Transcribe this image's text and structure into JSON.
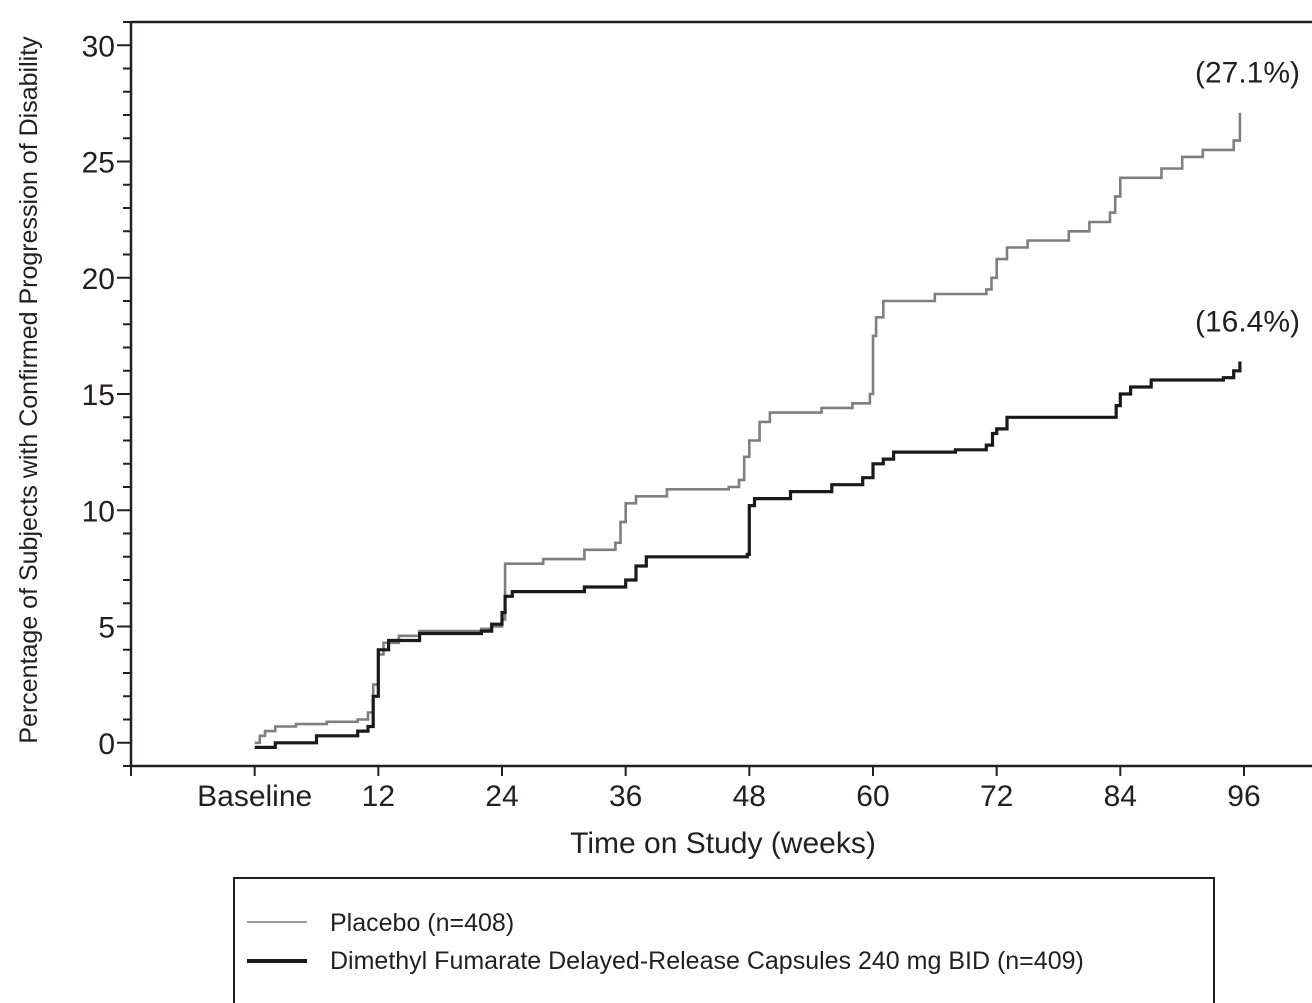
{
  "chart_data": {
    "type": "line",
    "step": true,
    "title": "",
    "ylabel": "Percentage of Subjects with Confirmed Progression of Disability",
    "xlabel": "Time on Study (weeks)",
    "x_ticks": [
      {
        "value": 0,
        "label": "Baseline"
      },
      {
        "value": 12,
        "label": "12"
      },
      {
        "value": 24,
        "label": "24"
      },
      {
        "value": 36,
        "label": "36"
      },
      {
        "value": 48,
        "label": "48"
      },
      {
        "value": 60,
        "label": "60"
      },
      {
        "value": 72,
        "label": "72"
      },
      {
        "value": 84,
        "label": "84"
      },
      {
        "value": 96,
        "label": "96"
      }
    ],
    "y_ticks": [
      0,
      5,
      10,
      15,
      20,
      25,
      30
    ],
    "xlim": [
      -12,
      102.6
    ],
    "ylim": [
      -1,
      31
    ],
    "grid": false,
    "legend_position": "bottom",
    "series": [
      {
        "name": "Placebo (n=408)",
        "color": "#7f7f7f",
        "end_label": "(27.1%)",
        "points": [
          [
            0,
            0
          ],
          [
            0.5,
            0.3
          ],
          [
            1,
            0.5
          ],
          [
            2,
            0.7
          ],
          [
            4,
            0.8
          ],
          [
            7,
            0.9
          ],
          [
            10,
            1.0
          ],
          [
            11,
            1.3
          ],
          [
            11.5,
            2.5
          ],
          [
            12,
            3.8
          ],
          [
            12.5,
            4.3
          ],
          [
            14,
            4.6
          ],
          [
            16,
            4.8
          ],
          [
            22,
            4.9
          ],
          [
            23,
            5.0
          ],
          [
            24,
            5.3
          ],
          [
            24.3,
            7.7
          ],
          [
            28,
            7.9
          ],
          [
            32,
            8.3
          ],
          [
            35,
            8.6
          ],
          [
            35.5,
            9.5
          ],
          [
            36,
            10.3
          ],
          [
            37,
            10.6
          ],
          [
            40,
            10.9
          ],
          [
            46,
            11.0
          ],
          [
            47,
            11.3
          ],
          [
            47.5,
            12.3
          ],
          [
            48,
            13.0
          ],
          [
            49,
            13.8
          ],
          [
            50,
            14.2
          ],
          [
            55,
            14.4
          ],
          [
            58,
            14.6
          ],
          [
            59.7,
            15.0
          ],
          [
            60,
            17.5
          ],
          [
            60.3,
            18.3
          ],
          [
            61,
            19.0
          ],
          [
            66,
            19.3
          ],
          [
            71,
            19.5
          ],
          [
            71.5,
            20.0
          ],
          [
            72,
            20.8
          ],
          [
            73,
            21.3
          ],
          [
            75,
            21.6
          ],
          [
            79,
            22.0
          ],
          [
            81,
            22.4
          ],
          [
            83,
            22.8
          ],
          [
            83.5,
            23.5
          ],
          [
            84,
            24.3
          ],
          [
            88,
            24.7
          ],
          [
            90,
            25.2
          ],
          [
            92,
            25.5
          ],
          [
            95,
            25.9
          ],
          [
            95.6,
            27.1
          ]
        ]
      },
      {
        "name": "Dimethyl Fumarate Delayed-Release Capsules 240 mg BID (n=409)",
        "color": "#1a1a1a",
        "end_label": "(16.4%)",
        "points": [
          [
            0,
            -0.2
          ],
          [
            2,
            0
          ],
          [
            6,
            0.3
          ],
          [
            10,
            0.5
          ],
          [
            11,
            0.7
          ],
          [
            11.5,
            2.0
          ],
          [
            12,
            4.0
          ],
          [
            13,
            4.4
          ],
          [
            16,
            4.7
          ],
          [
            22,
            4.8
          ],
          [
            23,
            5.1
          ],
          [
            24,
            5.6
          ],
          [
            24.3,
            6.3
          ],
          [
            25,
            6.5
          ],
          [
            32,
            6.7
          ],
          [
            36,
            7.0
          ],
          [
            37,
            7.6
          ],
          [
            38,
            8.0
          ],
          [
            47,
            8.0
          ],
          [
            47.8,
            8.1
          ],
          [
            48,
            10.2
          ],
          [
            48.5,
            10.5
          ],
          [
            52,
            10.8
          ],
          [
            56,
            11.1
          ],
          [
            59,
            11.4
          ],
          [
            60,
            12.0
          ],
          [
            61,
            12.2
          ],
          [
            62,
            12.5
          ],
          [
            68,
            12.6
          ],
          [
            71,
            12.8
          ],
          [
            71.6,
            13.3
          ],
          [
            72,
            13.5
          ],
          [
            73,
            14.0
          ],
          [
            83,
            14.0
          ],
          [
            83.6,
            14.5
          ],
          [
            84,
            15.0
          ],
          [
            85,
            15.3
          ],
          [
            87,
            15.6
          ],
          [
            94,
            15.7
          ],
          [
            95,
            16.0
          ],
          [
            95.6,
            16.4
          ]
        ]
      }
    ]
  }
}
